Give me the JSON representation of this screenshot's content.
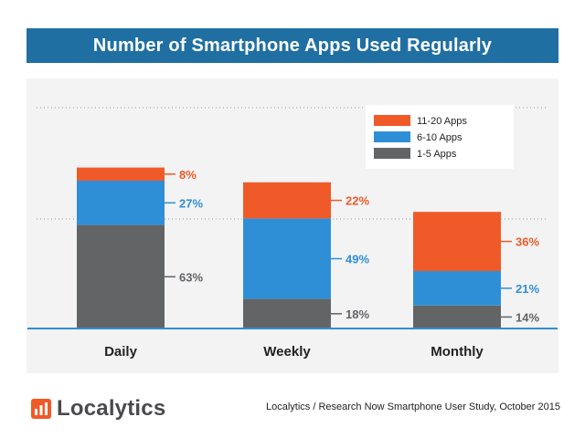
{
  "header": {
    "title": "Number of Smartphone Apps Used Regularly"
  },
  "chart_data": {
    "type": "bar",
    "stacked": true,
    "title": "Number of Smartphone Apps Used Regularly",
    "categories": [
      "Daily",
      "Weekly",
      "Monthly"
    ],
    "series": [
      {
        "name": "1-5 Apps",
        "values": [
          63,
          18,
          14
        ],
        "labels": [
          "63%",
          "18%",
          "14%"
        ],
        "color": "#636466"
      },
      {
        "name": "6-10 Apps",
        "values": [
          27,
          49,
          21
        ],
        "labels": [
          "27%",
          "49%",
          "21%"
        ],
        "color": "#2f8fd6"
      },
      {
        "name": "11-20 Apps",
        "values": [
          8,
          22,
          36
        ],
        "labels": [
          "8%",
          "22%",
          "36%"
        ],
        "color": "#f05a28"
      }
    ],
    "legend_order": [
      "11-20 Apps",
      "6-10 Apps",
      "1-5 Apps"
    ],
    "legend_position": "top-right",
    "ylim": [
      0,
      100
    ],
    "xlabel": "",
    "ylabel": "",
    "grid": "dotted"
  },
  "footer": {
    "brand": "Localytics",
    "source": "Localytics / Research Now Smartphone User Study, October 2015"
  },
  "colors": {
    "title_bg": "#1f6fa3",
    "baseline": "#2f8fd6",
    "panel_bg": "#f3f3f4"
  }
}
